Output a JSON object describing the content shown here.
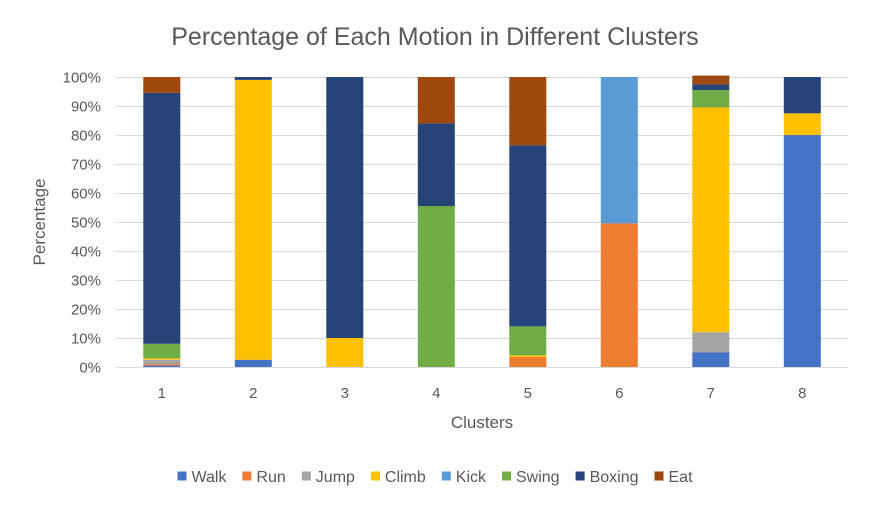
{
  "chart_data": {
    "type": "bar",
    "stacked": "percent",
    "title": "Percentage of Each Motion in Different Clusters",
    "xlabel": "Clusters",
    "ylabel": "Percentage",
    "categories": [
      "1",
      "2",
      "3",
      "4",
      "5",
      "6",
      "7",
      "8"
    ],
    "y_ticks": [
      "0%",
      "10%",
      "20%",
      "30%",
      "40%",
      "50%",
      "60%",
      "70%",
      "80%",
      "90%",
      "100%"
    ],
    "ylim": [
      0,
      100
    ],
    "grid": true,
    "legend_position": "bottom",
    "series": [
      {
        "name": "Walk",
        "color": "#4472C4",
        "values": [
          0.5,
          2.5,
          0,
          0,
          0,
          0,
          5,
          80
        ]
      },
      {
        "name": "Run",
        "color": "#ED7D31",
        "values": [
          0.5,
          0,
          0,
          0,
          3.5,
          49.5,
          0,
          0
        ]
      },
      {
        "name": "Jump",
        "color": "#A5A5A5",
        "values": [
          1.5,
          0,
          0,
          0,
          0,
          0,
          7,
          0
        ]
      },
      {
        "name": "Climb",
        "color": "#FFC000",
        "values": [
          0.5,
          96.5,
          10,
          0,
          0.5,
          0,
          77.5,
          7.5
        ]
      },
      {
        "name": "Kick",
        "color": "#5B9BD5",
        "values": [
          0,
          0,
          0,
          0,
          0,
          50.5,
          0,
          0
        ]
      },
      {
        "name": "Swing",
        "color": "#70AD47",
        "values": [
          5,
          0,
          0,
          55.5,
          10,
          0,
          6,
          0
        ]
      },
      {
        "name": "Boxing",
        "color": "#264478",
        "values": [
          86.5,
          1,
          90,
          28.5,
          62.5,
          0,
          2,
          12.5
        ]
      },
      {
        "name": "Eat",
        "color": "#9E480E",
        "values": [
          5.5,
          0,
          0,
          16,
          23.5,
          0,
          3,
          0
        ]
      }
    ]
  }
}
